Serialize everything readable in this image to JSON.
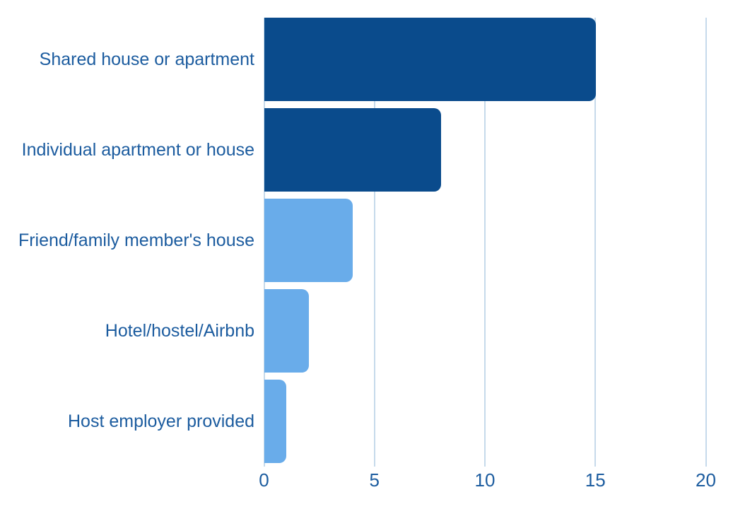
{
  "chart_data": {
    "type": "bar",
    "orientation": "horizontal",
    "title": "",
    "xlabel": "",
    "ylabel": "",
    "categories": [
      "Shared house or apartment",
      "Individual apartment or house",
      "Friend/family member's house",
      "Hotel/hostel/Airbnb",
      "Host employer provided"
    ],
    "values": [
      15,
      8,
      4,
      2,
      1
    ],
    "bar_colors": [
      "#0a4b8c",
      "#0a4b8c",
      "#69acea",
      "#69acea",
      "#69acea"
    ],
    "xlim": [
      0,
      20
    ],
    "xticks": [
      0,
      5,
      10,
      15,
      20
    ],
    "xtick_labels": [
      "0",
      "5",
      "10",
      "15",
      "20"
    ],
    "grid": "vertical",
    "legend": "none",
    "colors": {
      "dark_bar": "#0a4b8c",
      "light_bar": "#69acea",
      "label_text": "#1c5c9f",
      "gridline": "#c6daeb",
      "background": "#ffffff"
    }
  }
}
